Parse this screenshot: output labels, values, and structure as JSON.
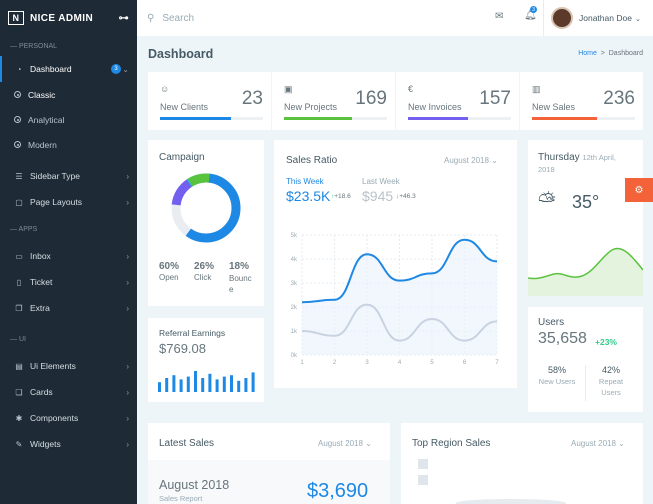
{
  "brand": {
    "name": "NICE ADMIN",
    "logo": "N"
  },
  "sidebar": {
    "section_personal": "— PERSONAL",
    "dashboard": "Dashboard",
    "dashboard_badge": "3",
    "classic": "Classic",
    "analytical": "Analytical",
    "modern": "Modern",
    "sidebar_type": "Sidebar Type",
    "page_layouts": "Page Layouts",
    "section_apps": "— APPS",
    "inbox": "Inbox",
    "ticket": "Ticket",
    "extra": "Extra",
    "section_ui": "— UI",
    "ui_elements": "Ui Elements",
    "cards": "Cards",
    "components": "Components",
    "widgets": "Widgets"
  },
  "topbar": {
    "search_placeholder": "Search",
    "notif_count": "3",
    "user_name": "Jonathan Doe"
  },
  "page": {
    "title": "Dashboard",
    "crumb_home": "Home",
    "crumb_sep": ">",
    "crumb_current": "Dashboard"
  },
  "stats": [
    {
      "label": "New Clients",
      "value": "23",
      "icon": "smile-icon",
      "color": "#1e88e5",
      "fill": 0.69
    },
    {
      "label": "New Projects",
      "value": "169",
      "icon": "image-icon",
      "color": "#26c6da",
      "fill": 0.66
    },
    {
      "label": "New Invoices",
      "value": "157",
      "icon": "euro-icon",
      "color": "#7460ee",
      "fill": 0.58
    },
    {
      "label": "New Sales",
      "value": "236",
      "icon": "bars-icon",
      "color": "#fc4b6c",
      "fill": 0.63
    }
  ],
  "campaign": {
    "title": "Campaign",
    "items": [
      {
        "pct": "60%",
        "label": "Open"
      },
      {
        "pct": "26%",
        "label": "Click"
      },
      {
        "pct": "18%",
        "label": "Bounce"
      }
    ]
  },
  "sales_ratio": {
    "title": "Sales Ratio",
    "period": "August 2018",
    "this_week_label": "This Week",
    "this_week_value": "$23.5K",
    "this_week_change": "+18.6",
    "last_week_label": "Last Week",
    "last_week_value": "$945",
    "last_week_change": "+46.3"
  },
  "chart_data": {
    "type": "line",
    "x": [
      1,
      2,
      3,
      4,
      5,
      6,
      7
    ],
    "y_ticks": [
      "0k",
      "1k",
      "2k",
      "3k",
      "4k",
      "5k"
    ],
    "ylim": [
      0,
      5
    ],
    "series": [
      {
        "values": [
          2.2,
          2.3,
          4.2,
          3.1,
          3.4,
          4.8,
          3.9
        ]
      },
      {
        "values": [
          1,
          0.8,
          2.1,
          0.6,
          1.5,
          0.6,
          1.4
        ]
      }
    ]
  },
  "weather": {
    "day": "Thursday",
    "date": "12th April,",
    "year": "2018",
    "temp": "35°"
  },
  "users": {
    "title": "Users",
    "value": "35,658",
    "change": "+23%",
    "new_pct": "58%",
    "new_label": "New Users",
    "repeat_pct": "42%",
    "repeat_label": "Repeat Users"
  },
  "referral": {
    "title": "Referral Earnings",
    "value": "$769.08",
    "bars": [
      0.35,
      0.5,
      0.6,
      0.45,
      0.55,
      0.75,
      0.5,
      0.65,
      0.45,
      0.55,
      0.6,
      0.4,
      0.5,
      0.7
    ]
  },
  "latest_sales": {
    "title": "Latest Sales",
    "period": "August 2018",
    "month": "August 2018",
    "sub": "Sales Report",
    "value": "$3,690"
  },
  "top_region": {
    "title": "Top Region Sales",
    "period": "August 2018"
  }
}
